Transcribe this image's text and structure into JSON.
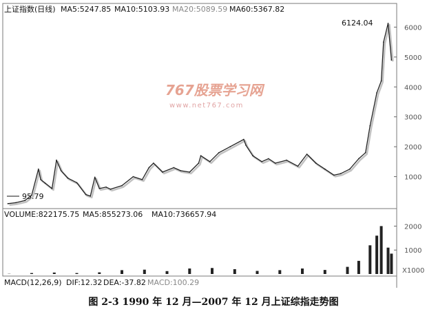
{
  "header": {
    "index_name": "上证指数(日线)",
    "ma5": "MA5:5247.85",
    "ma10": "MA10:5103.93",
    "ma20": "MA20:5089.59",
    "ma60": "MA60:5367.82"
  },
  "volume_header": {
    "volume": "VOLUME:822175.75",
    "ma5": "MA5:855273.06",
    "ma10": "MA10:736657.94"
  },
  "macd_header": {
    "macd": "MACD(12,26,9)",
    "dif": "DIF:12.32",
    "dea": "DEA:-37.82",
    "macd_value": "MACD:100.29"
  },
  "watermark": {
    "logo": "767股票学习网",
    "url": "www.net767.com"
  },
  "annotations": {
    "high": "6124.04",
    "low": "95.79"
  },
  "caption": "图 2-3    1990 年 12 月—2007 年 12 月上证综指走势图",
  "colors": {
    "line": "#222222",
    "volume": "#222222",
    "watermark": "#d2593a",
    "grid": "#aaaaaa"
  },
  "chart_data": [
    {
      "type": "line",
      "y_ticks": [
        1000,
        2000,
        3000,
        4000,
        5000,
        6000
      ],
      "ylim": [
        0,
        6400
      ],
      "xlim": [
        1990.9,
        2008.0
      ],
      "x": [
        1990.95,
        1991.3,
        1991.7,
        1992.0,
        1992.3,
        1992.4,
        1992.6,
        1992.9,
        1993.1,
        1993.3,
        1993.6,
        1994.0,
        1994.4,
        1994.6,
        1994.8,
        1995.0,
        1995.3,
        1995.5,
        1996.0,
        1996.5,
        1996.9,
        1997.2,
        1997.4,
        1997.8,
        1998.3,
        1998.6,
        1999.0,
        1999.4,
        1999.5,
        1999.9,
        2000.3,
        2000.8,
        2001.4,
        2001.5,
        2001.8,
        2002.2,
        2002.5,
        2002.8,
        2003.3,
        2003.8,
        2004.2,
        2004.6,
        2005.0,
        2005.4,
        2005.7,
        2006.1,
        2006.5,
        2006.8,
        2007.0,
        2007.3,
        2007.5,
        2007.6,
        2007.8,
        2007.95
      ],
      "y": [
        96,
        130,
        200,
        380,
        1250,
        900,
        780,
        600,
        1550,
        1200,
        950,
        800,
        400,
        350,
        980,
        600,
        650,
        580,
        700,
        1000,
        900,
        1300,
        1450,
        1150,
        1300,
        1200,
        1150,
        1450,
        1700,
        1500,
        1800,
        2000,
        2245,
        2050,
        1700,
        1500,
        1600,
        1450,
        1550,
        1350,
        1750,
        1450,
        1250,
        1050,
        1100,
        1250,
        1600,
        1800,
        2700,
        3800,
        4200,
        5500,
        6124,
        4900
      ],
      "series": [
        {
          "name": "上证指数(日线)"
        }
      ]
    },
    {
      "type": "bar",
      "y_ticks": [
        1000,
        2000
      ],
      "ylim": [
        0,
        2300
      ],
      "unit_label": "X1000",
      "x": [
        1991,
        1992,
        1993,
        1994,
        1995,
        1996,
        1997,
        1998,
        1999,
        2000,
        2001,
        2002,
        2003,
        2004,
        2005,
        2006,
        2006.5,
        2007,
        2007.3,
        2007.5,
        2007.8,
        2007.95
      ],
      "values": [
        10,
        40,
        60,
        40,
        70,
        160,
        180,
        120,
        230,
        250,
        200,
        130,
        160,
        230,
        170,
        300,
        550,
        1200,
        1600,
        2000,
        1100,
        850
      ]
    }
  ]
}
